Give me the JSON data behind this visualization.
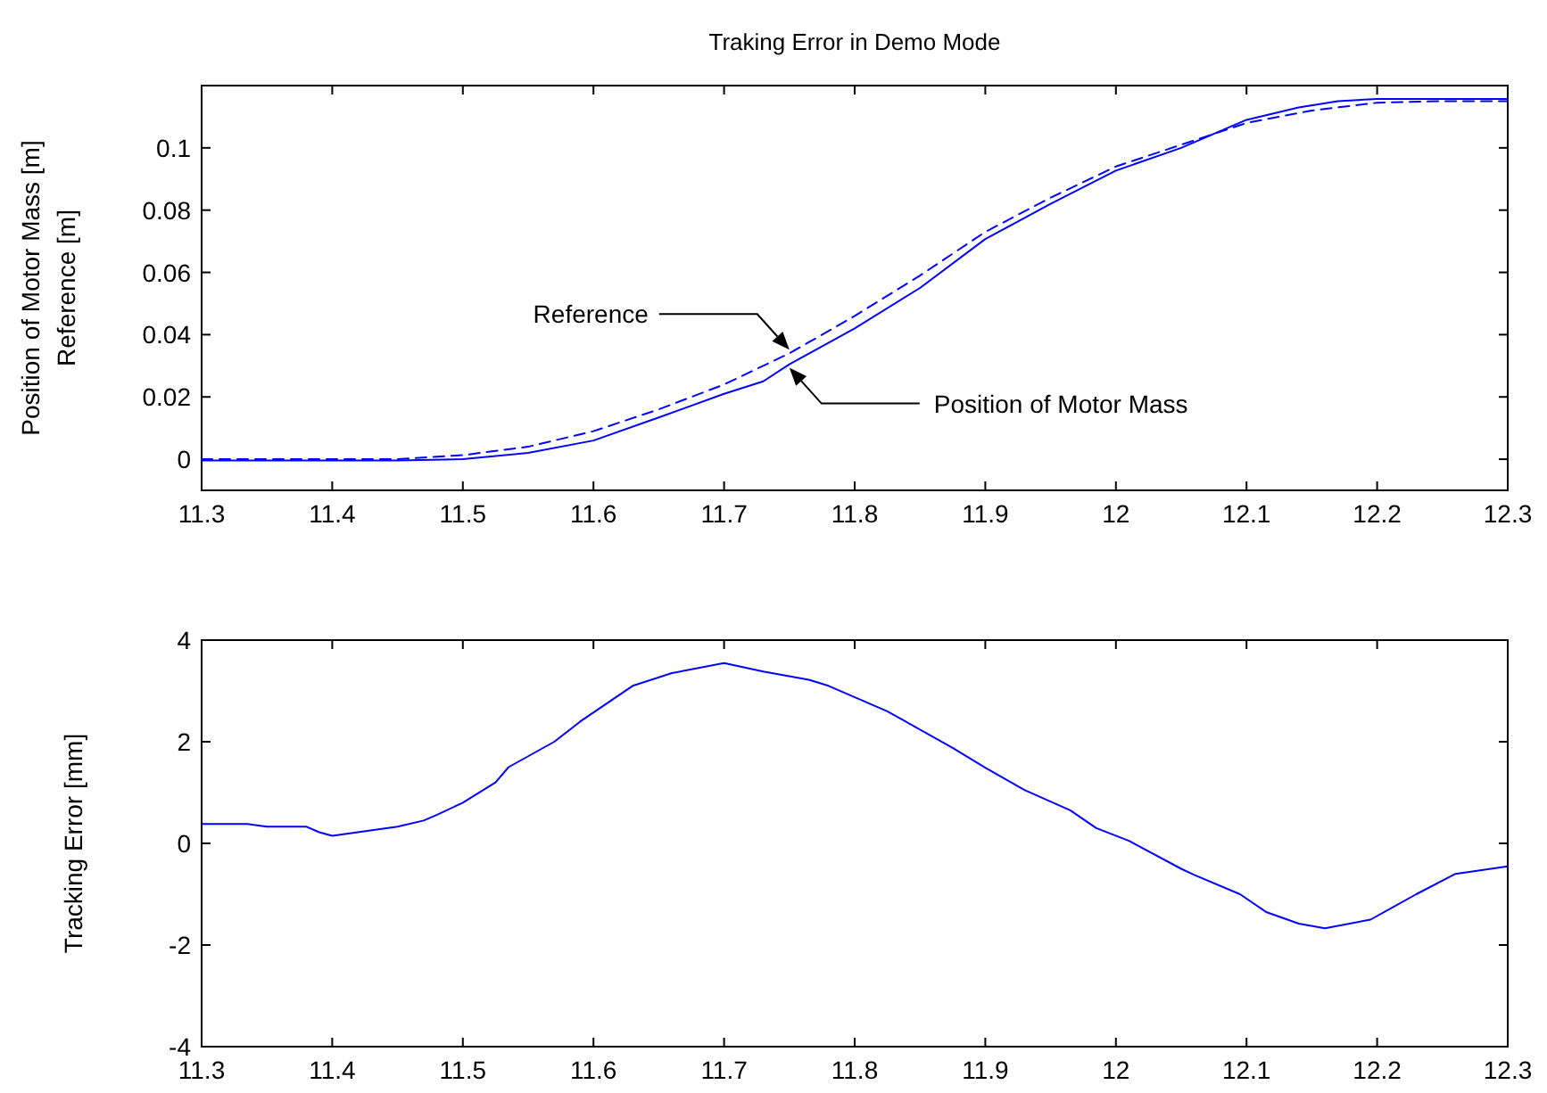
{
  "chart_data": [
    {
      "type": "line",
      "title": "Traking Error in Demo Mode",
      "ylabel": "Position of Motor Mass [m]\nReference [m]",
      "xlim": [
        11.3,
        12.3
      ],
      "xticks": [
        11.3,
        11.4,
        11.5,
        11.6,
        11.7,
        11.8,
        11.9,
        12,
        12.1,
        12.2,
        12.3
      ],
      "ylim": [
        -0.01,
        0.12
      ],
      "yticks": [
        0,
        0.02,
        0.04,
        0.06,
        0.08,
        0.1
      ],
      "grid": false,
      "annotations": [
        "Reference",
        "Position of Motor Mass"
      ],
      "series": [
        {
          "color": "#0000ff",
          "line_style": "dashed",
          "x": [
            11.3,
            11.35,
            11.4,
            11.45,
            11.5,
            11.55,
            11.6,
            11.65,
            11.7,
            11.75,
            11.8,
            11.85,
            11.9,
            11.95,
            12.0,
            12.05,
            12.1,
            12.15,
            12.2,
            12.25,
            12.3
          ],
          "values": [
            0,
            0,
            0,
            0,
            0.0013,
            0.004,
            0.009,
            0.016,
            0.024,
            0.034,
            0.046,
            0.059,
            0.073,
            0.084,
            0.094,
            0.101,
            0.108,
            0.112,
            0.1145,
            0.115,
            0.115
          ]
        },
        {
          "color": "#0000ff",
          "line_style": "solid",
          "x": [
            11.3,
            11.35,
            11.4,
            11.45,
            11.5,
            11.55,
            11.6,
            11.65,
            11.7,
            11.73,
            11.75,
            11.8,
            11.85,
            11.9,
            11.95,
            12.0,
            12.05,
            12.1,
            12.14,
            12.17,
            12.2,
            12.25,
            12.3
          ],
          "values": [
            -0.0004,
            -0.0004,
            -0.0004,
            -0.0004,
            0,
            0.002,
            0.006,
            0.0134,
            0.021,
            0.025,
            0.0305,
            0.042,
            0.055,
            0.0707,
            0.082,
            0.0927,
            0.1,
            0.109,
            0.113,
            0.115,
            0.1157,
            0.1157,
            0.1157
          ]
        }
      ]
    },
    {
      "type": "line",
      "ylabel": "Tracking Error [mm]",
      "xlim": [
        11.3,
        12.3
      ],
      "xticks": [
        11.3,
        11.4,
        11.5,
        11.6,
        11.7,
        11.8,
        11.9,
        12,
        12.1,
        12.2,
        12.3
      ],
      "ylim": [
        -4,
        4
      ],
      "yticks": [
        -4,
        -2,
        0,
        2,
        4
      ],
      "grid": false,
      "series": [
        {
          "color": "#0000ff",
          "line_style": "solid",
          "x": [
            11.3,
            11.335,
            11.35,
            11.38,
            11.39,
            11.4,
            11.45,
            11.47,
            11.48,
            11.5,
            11.525,
            11.535,
            11.57,
            11.59,
            11.63,
            11.66,
            11.7,
            11.73,
            11.765,
            11.78,
            11.825,
            11.875,
            11.9,
            11.93,
            11.965,
            11.985,
            12.01,
            12.05,
            12.06,
            12.095,
            12.115,
            12.14,
            12.16,
            12.195,
            12.23,
            12.26,
            12.3
          ],
          "values": [
            0.38,
            0.38,
            0.33,
            0.33,
            0.22,
            0.15,
            0.33,
            0.45,
            0.56,
            0.8,
            1.2,
            1.5,
            2.0,
            2.4,
            3.1,
            3.35,
            3.55,
            3.38,
            3.22,
            3.1,
            2.6,
            1.88,
            1.49,
            1.05,
            0.65,
            0.3,
            0.05,
            -0.5,
            -0.62,
            -1.0,
            -1.35,
            -1.58,
            -1.67,
            -1.5,
            -1.0,
            -0.6,
            -0.45
          ]
        }
      ]
    }
  ]
}
